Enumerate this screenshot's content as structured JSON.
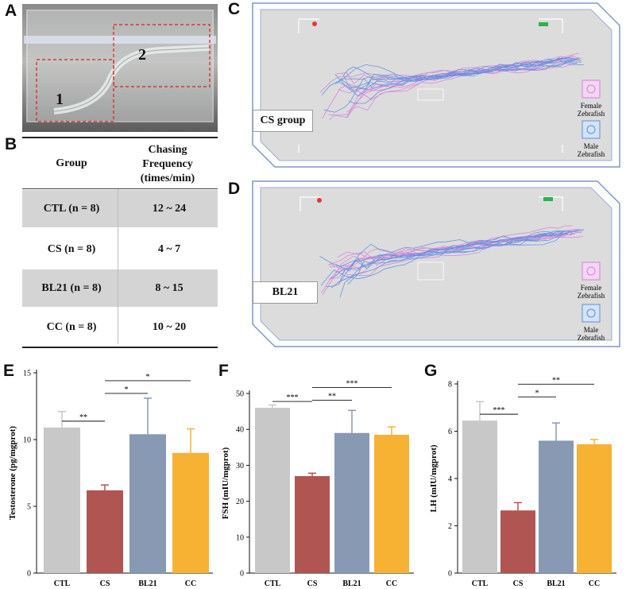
{
  "panels": {
    "A": "A",
    "B": "B",
    "C": "C",
    "D": "D",
    "E": "E",
    "F": "F",
    "G": "G"
  },
  "panel_a": {
    "region1": "1",
    "region2": "2"
  },
  "table": {
    "header_group": "Group",
    "header_freq_lines": [
      "Chasing",
      "Frequency",
      "(times/min)"
    ],
    "rows": [
      {
        "group": "CTL (n = 8)",
        "freq": "12 ~ 24",
        "shaded": true
      },
      {
        "group": "CS (n = 8)",
        "freq": "4 ~ 7",
        "shaded": false
      },
      {
        "group": "BL21 (n = 8)",
        "freq": "8 ~ 15",
        "shaded": true
      },
      {
        "group": "CC (n = 8)",
        "freq": "10 ~ 20",
        "shaded": false
      }
    ]
  },
  "tracking": [
    {
      "group_label": "CS group",
      "legend_female": [
        "Female",
        "Zebrafish"
      ],
      "legend_male": [
        "Male",
        "Zebrafish"
      ]
    },
    {
      "group_label": "BL21",
      "legend_female": [
        "Female",
        "Zebrafish"
      ],
      "legend_male": [
        "Male",
        "Zebrafish"
      ]
    }
  ],
  "colors": {
    "CTL": "#c8c8c8",
    "CS": "#b05552",
    "BL21": "#8799b3",
    "CC": "#f7b233",
    "female": "#d97fd9",
    "male": "#5b8fe0"
  },
  "chart_data": [
    {
      "type": "bar",
      "panel": "E",
      "categories": [
        "CTL",
        "CS",
        "BL21",
        "CC"
      ],
      "values": [
        10.9,
        6.2,
        10.4,
        9.0
      ],
      "errors": [
        1.2,
        0.4,
        2.7,
        1.8
      ],
      "ylabel": "Testosterone (pg/mgprot)",
      "ylim": [
        0,
        15
      ],
      "yticks": [
        0,
        5,
        10,
        15
      ],
      "significance": [
        {
          "a": 0,
          "b": 1,
          "label": "**"
        },
        {
          "a": 1,
          "b": 2,
          "label": "*"
        },
        {
          "a": 1,
          "b": 3,
          "label": "*"
        }
      ]
    },
    {
      "type": "bar",
      "panel": "F",
      "categories": [
        "CTL",
        "CS",
        "BL21",
        "CC"
      ],
      "values": [
        46,
        27,
        39,
        38.5
      ],
      "errors": [
        0.8,
        0.8,
        6.3,
        2.2
      ],
      "ylabel": "FSH (mIU/mgprot)",
      "ylim": [
        0,
        50
      ],
      "yticks": [
        0,
        10,
        20,
        30,
        40,
        50
      ],
      "significance": [
        {
          "a": 0,
          "b": 1,
          "label": "***"
        },
        {
          "a": 1,
          "b": 2,
          "label": "**"
        },
        {
          "a": 1,
          "b": 3,
          "label": "***"
        }
      ]
    },
    {
      "type": "bar",
      "panel": "G",
      "categories": [
        "CTL",
        "CS",
        "BL21",
        "CC"
      ],
      "values": [
        6.45,
        2.65,
        5.6,
        5.45
      ],
      "errors": [
        0.8,
        0.33,
        0.75,
        0.2
      ],
      "ylabel": "LH (mIU/mgprot)",
      "ylim": [
        0,
        8
      ],
      "yticks": [
        0,
        2,
        4,
        6,
        8
      ],
      "significance": [
        {
          "a": 0,
          "b": 1,
          "label": "***"
        },
        {
          "a": 1,
          "b": 2,
          "label": "*"
        },
        {
          "a": 1,
          "b": 3,
          "label": "**"
        }
      ]
    }
  ]
}
